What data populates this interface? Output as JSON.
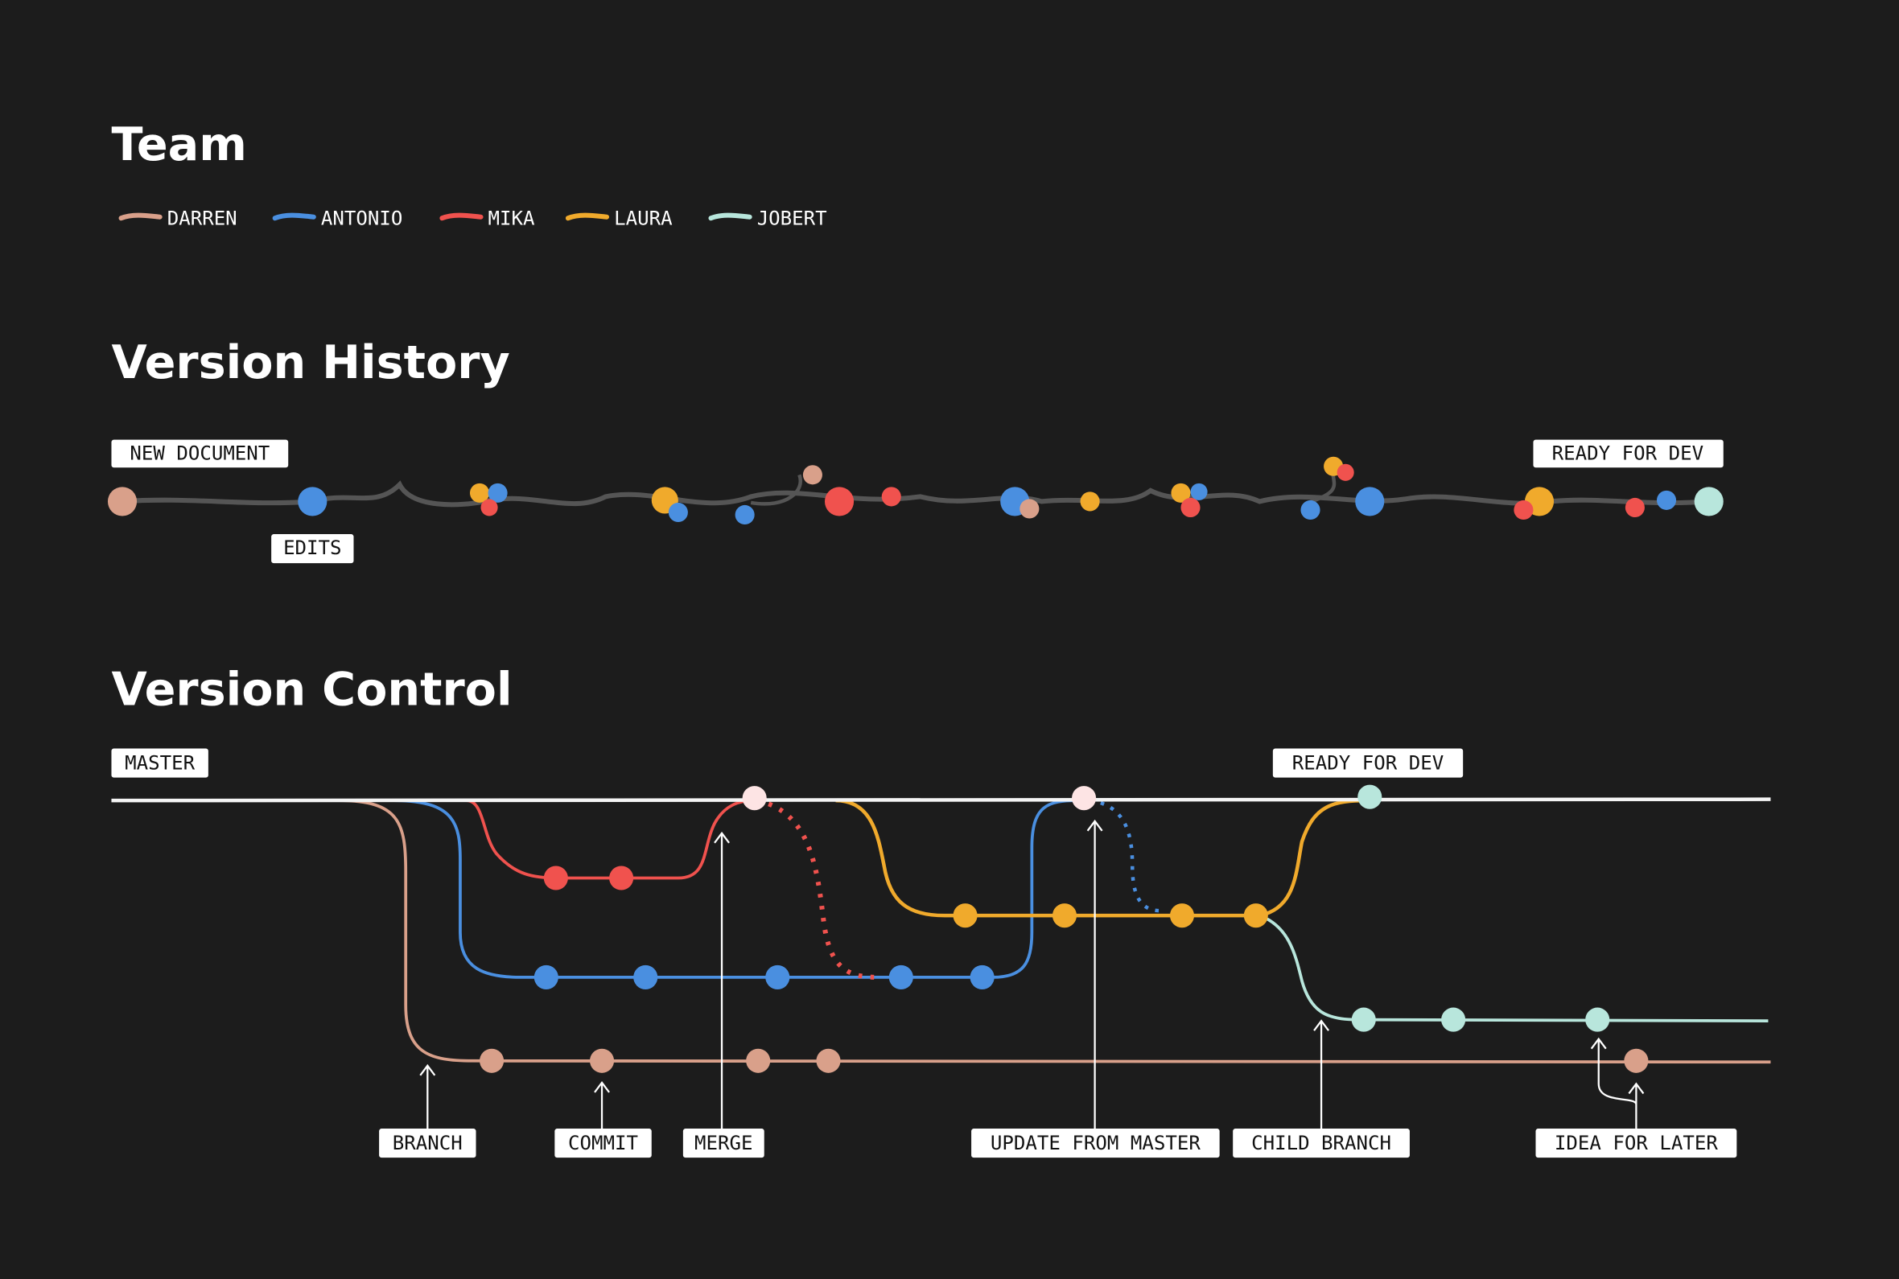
{
  "team": {
    "title": "Team",
    "members": [
      {
        "name": "DARREN",
        "color": "#d9a08a"
      },
      {
        "name": "ANTONIO",
        "color": "#4a8fe0"
      },
      {
        "name": "MIKA",
        "color": "#f0524e"
      },
      {
        "name": "LAURA",
        "color": "#f0aa2c"
      },
      {
        "name": "JOBERT",
        "color": "#b8e6dc"
      }
    ]
  },
  "version_history": {
    "title": "Version History",
    "labels": {
      "start": "NEW DOCUMENT",
      "edits": "EDITS",
      "end": "READY FOR DEV"
    }
  },
  "version_control": {
    "title": "Version Control",
    "labels": {
      "master": "MASTER",
      "ready": "READY FOR DEV",
      "branch": "BRANCH",
      "commit": "COMMIT",
      "merge": "MERGE",
      "update": "UPDATE FROM MASTER",
      "child": "CHILD BRANCH",
      "idea": "IDEA FOR LATER"
    }
  }
}
